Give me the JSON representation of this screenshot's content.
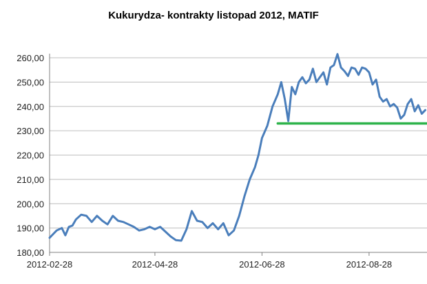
{
  "chart_data": {
    "type": "line",
    "title": "Kukurydza- kontrakty listopad 2012, MATIF",
    "xlabel": "",
    "ylabel": "",
    "ylim": [
      180,
      260
    ],
    "yticks": [
      "180,00",
      "190,00",
      "200,00",
      "210,00",
      "220,00",
      "230,00",
      "240,00",
      "250,00",
      "260,00"
    ],
    "xticks": [
      "2012-02-28",
      "2012-04-28",
      "2012-06-28",
      "2012-08-28"
    ],
    "xrange": [
      "2012-02-28",
      "2012-09-30"
    ],
    "grid": {
      "horizontal": true,
      "vertical": false
    },
    "legend": "none",
    "series": [
      {
        "color": "#4a7ebb",
        "x": [
          "2012-02-28",
          "2012-03-01",
          "2012-03-03",
          "2012-03-06",
          "2012-03-08",
          "2012-03-10",
          "2012-03-12",
          "2012-03-14",
          "2012-03-17",
          "2012-03-20",
          "2012-03-23",
          "2012-03-26",
          "2012-03-29",
          "2012-04-01",
          "2012-04-04",
          "2012-04-07",
          "2012-04-10",
          "2012-04-13",
          "2012-04-16",
          "2012-04-19",
          "2012-04-22",
          "2012-04-25",
          "2012-04-28",
          "2012-05-01",
          "2012-05-04",
          "2012-05-07",
          "2012-05-10",
          "2012-05-13",
          "2012-05-16",
          "2012-05-19",
          "2012-05-22",
          "2012-05-25",
          "2012-05-28",
          "2012-05-31",
          "2012-06-03",
          "2012-06-06",
          "2012-06-09",
          "2012-06-12",
          "2012-06-15",
          "2012-06-18",
          "2012-06-21",
          "2012-06-24",
          "2012-06-26",
          "2012-06-28",
          "2012-07-01",
          "2012-07-04",
          "2012-07-07",
          "2012-07-09",
          "2012-07-11",
          "2012-07-13",
          "2012-07-15",
          "2012-07-17",
          "2012-07-19",
          "2012-07-21",
          "2012-07-23",
          "2012-07-25",
          "2012-07-27",
          "2012-07-29",
          "2012-07-31",
          "2012-08-02",
          "2012-08-04",
          "2012-08-06",
          "2012-08-08",
          "2012-08-10",
          "2012-08-12",
          "2012-08-14",
          "2012-08-16",
          "2012-08-18",
          "2012-08-20",
          "2012-08-22",
          "2012-08-24",
          "2012-08-26",
          "2012-08-28",
          "2012-08-30",
          "2012-09-01",
          "2012-09-03",
          "2012-09-05",
          "2012-09-07",
          "2012-09-09",
          "2012-09-11",
          "2012-09-13",
          "2012-09-15",
          "2012-09-17",
          "2012-09-19",
          "2012-09-21",
          "2012-09-23",
          "2012-09-25",
          "2012-09-27",
          "2012-09-29"
        ],
        "values": [
          186.0,
          187.5,
          189.0,
          190.0,
          187.0,
          190.5,
          191.0,
          193.5,
          195.5,
          195.0,
          192.5,
          195.0,
          193.0,
          191.5,
          195.0,
          193.0,
          192.5,
          191.5,
          190.5,
          189.0,
          189.5,
          190.5,
          189.5,
          190.5,
          188.5,
          186.5,
          185.0,
          184.8,
          189.5,
          197.0,
          193.0,
          192.5,
          190.0,
          192.0,
          189.5,
          192.0,
          187.0,
          189.0,
          195.0,
          203.0,
          210.0,
          215.0,
          220.0,
          227.0,
          232.0,
          240.0,
          245.0,
          250.0,
          243.0,
          234.0,
          248.0,
          245.0,
          250.0,
          252.0,
          249.5,
          251.0,
          255.5,
          250.0,
          252.0,
          254.0,
          249.0,
          256.0,
          257.0,
          261.5,
          256.0,
          254.5,
          252.5,
          256.0,
          255.5,
          253.0,
          256.0,
          255.5,
          254.0,
          249.0,
          251.0,
          244.0,
          242.0,
          243.0,
          240.0,
          241.0,
          239.5,
          235.0,
          236.5,
          241.0,
          243.0,
          238.0,
          240.5,
          237.0,
          238.5
        ]
      },
      {
        "color": "#2db34a",
        "x": [
          "2012-07-07",
          "2012-09-30"
        ],
        "values": [
          233.0,
          233.0
        ]
      }
    ]
  }
}
